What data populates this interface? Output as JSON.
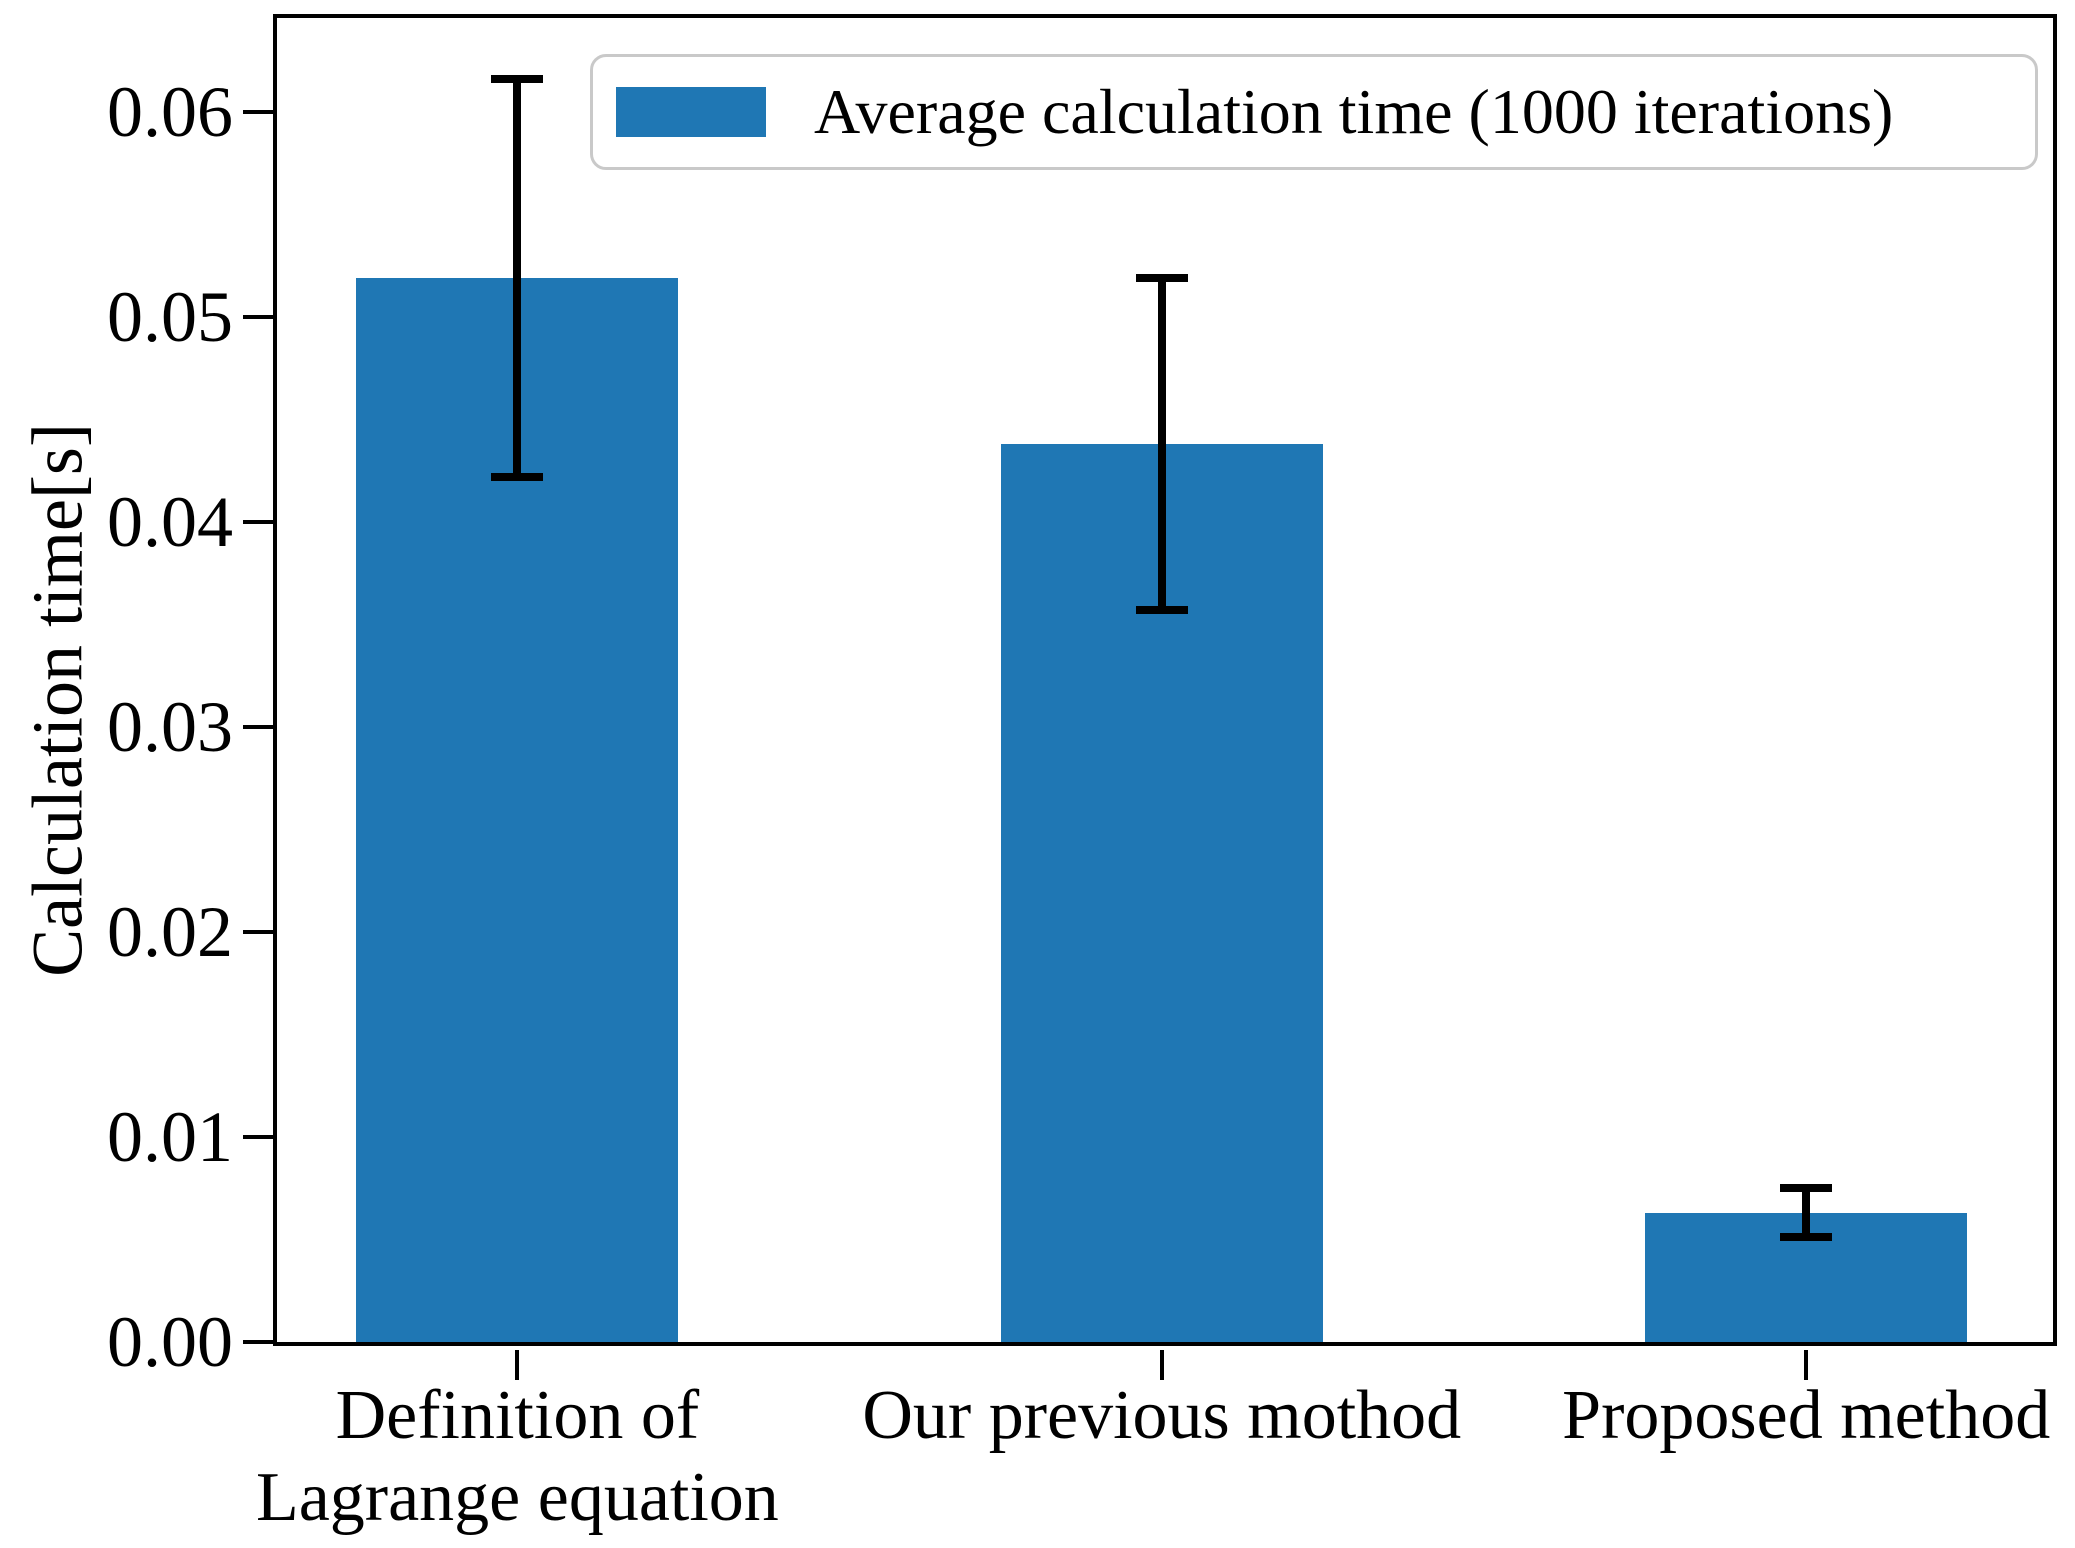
{
  "chart_data": {
    "type": "bar",
    "title": "",
    "xlabel": "",
    "ylabel": "Calculation time[s]",
    "categories": [
      "Definition of\nLagrange equation",
      "Our previous mothod",
      "Proposed method"
    ],
    "values": [
      0.0519,
      0.0438,
      0.0063
    ],
    "errors": [
      0.0097,
      0.0081,
      0.0012
    ],
    "series_name": "Average calculation time (1000 iterations)",
    "legend": [
      "Average calculation time (1000 iterations)"
    ],
    "legend_position": "upper right",
    "grid": false,
    "ylim": [
      0,
      0.0646
    ],
    "yticks": [
      {
        "value": 0.0,
        "label": "0.00"
      },
      {
        "value": 0.01,
        "label": "0.01"
      },
      {
        "value": 0.02,
        "label": "0.02"
      },
      {
        "value": 0.03,
        "label": "0.03"
      },
      {
        "value": 0.04,
        "label": "0.04"
      },
      {
        "value": 0.05,
        "label": "0.05"
      },
      {
        "value": 0.06,
        "label": "0.06"
      }
    ],
    "xlim": [
      -0.373,
      2.383
    ],
    "x_positions": [
      0,
      1,
      2
    ],
    "bar_width_units": 0.5,
    "bar_color": "#1f77b4",
    "error_color": "#000000",
    "axis_color": "#000000"
  }
}
